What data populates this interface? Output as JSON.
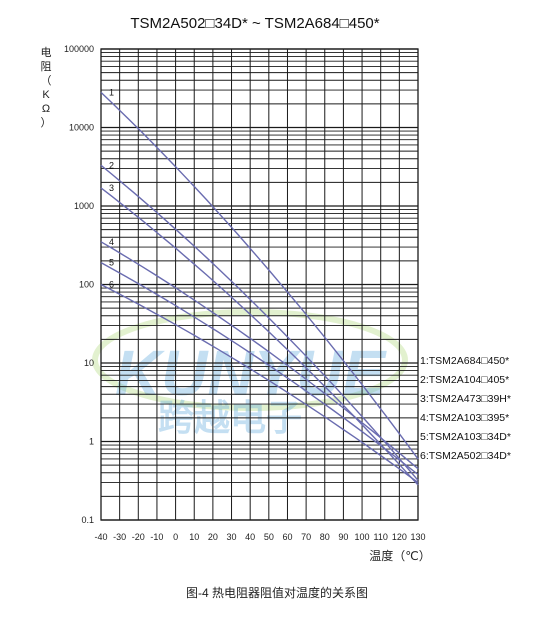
{
  "chart_data": {
    "type": "line",
    "title": "TSM2A502□34D* ~ TSM2A684□450*",
    "ylabel": "电阻（KΩ）",
    "xlabel": "温度（℃）",
    "yscale": "log",
    "ylim": [
      0.1,
      100000
    ],
    "xlim": [
      -40,
      130
    ],
    "x_ticks": [
      "-40",
      "-30",
      "-20",
      "-10",
      "0",
      "10",
      "20",
      "30",
      "40",
      "50",
      "60",
      "70",
      "80",
      "90",
      "100",
      "110",
      "120",
      "130"
    ],
    "y_ticks": [
      "100000",
      "10000",
      "1000",
      "100",
      "10",
      "1",
      "0.1"
    ],
    "grid": true,
    "series": [
      {
        "name": "1:TSM2A684□450*",
        "marker": "1",
        "x": [
          -40,
          130
        ],
        "y": [
          28000,
          0.6
        ]
      },
      {
        "name": "2:TSM2A104□405*",
        "marker": "2",
        "x": [
          -40,
          130
        ],
        "y": [
          3300,
          0.32
        ]
      },
      {
        "name": "3:TSM2A473□39H*",
        "marker": "3",
        "x": [
          -40,
          130
        ],
        "y": [
          1700,
          0.28
        ]
      },
      {
        "name": "4:TSM2A103□395*",
        "marker": "4",
        "x": [
          -40,
          130
        ],
        "y": [
          350,
          0.45
        ]
      },
      {
        "name": "5:TSM2A103□34D*",
        "marker": "5",
        "x": [
          -40,
          130
        ],
        "y": [
          190,
          0.38
        ]
      },
      {
        "name": "6:TSM2A502□34D*",
        "marker": "6",
        "x": [
          -40,
          130
        ],
        "y": [
          100,
          0.3
        ]
      }
    ],
    "colors": {
      "line": "#6a6cb0",
      "grid": "#1a1a1a",
      "watermark": "#5aa6dc"
    }
  },
  "watermark": {
    "text_en": "KUNYUE",
    "text_cn": "跨越电子"
  },
  "caption": "图-4  热电阻器阻值对温度的关系图"
}
